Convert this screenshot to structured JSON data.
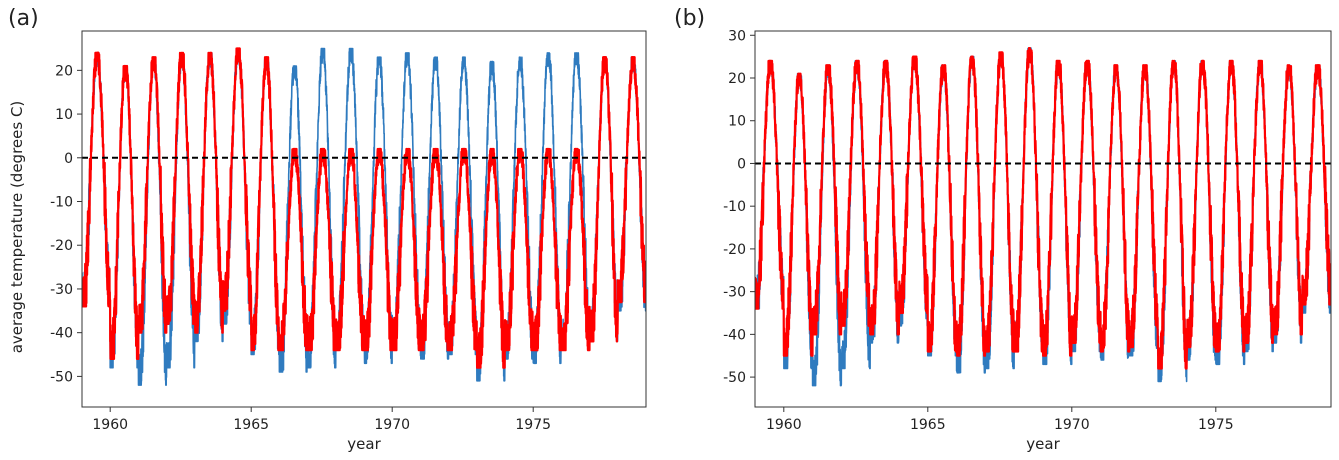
{
  "panels": [
    {
      "label": "(a)"
    },
    {
      "label": "(b)"
    }
  ],
  "colors": {
    "observed": "#2f7bbf",
    "modeled": "#ff0000",
    "zero_line": "#000000"
  },
  "chart_data": [
    {
      "panel": "(a)",
      "type": "line",
      "xlabel": "year",
      "ylabel": "average temperature (degrees C)",
      "xlim": [
        1959,
        1979
      ],
      "ylim": [
        -57,
        29
      ],
      "xticks": [
        1960,
        1965,
        1970,
        1975
      ],
      "yticks": [
        -50,
        -40,
        -30,
        -20,
        -10,
        0,
        10,
        20
      ],
      "reference_line": {
        "y": 0,
        "style": "dashed"
      },
      "series": [
        {
          "color": "#2f7bbf",
          "annual_peaks": [
            24,
            21,
            23,
            24,
            24,
            25,
            23,
            21,
            25,
            25,
            23,
            24,
            23,
            23,
            22,
            23,
            24,
            24,
            23,
            23
          ],
          "annual_troughs": [
            -34,
            -48,
            -52,
            -48,
            -42,
            -38,
            -45,
            -49,
            -48,
            -44,
            -47,
            -44,
            -46,
            -45,
            -51,
            -46,
            -47,
            -44,
            -42,
            -35
          ]
        },
        {
          "color": "#ff0000",
          "annual_peaks": [
            24,
            21,
            23,
            24,
            24,
            25,
            23,
            2,
            2,
            2,
            2,
            2,
            2,
            2,
            2,
            2,
            2,
            2,
            23,
            23
          ],
          "annual_troughs": [
            -34,
            -46,
            -40,
            -38,
            -40,
            -35,
            -44,
            -44,
            -44,
            -44,
            -44,
            -44,
            -44,
            -44,
            -48,
            -44,
            -44,
            -44,
            -42,
            -33
          ]
        }
      ]
    },
    {
      "panel": "(b)",
      "type": "line",
      "xlabel": "year",
      "ylabel": "",
      "xlim": [
        1959,
        1979
      ],
      "ylim": [
        -57,
        31
      ],
      "xticks": [
        1960,
        1965,
        1970,
        1975
      ],
      "yticks": [
        -50,
        -40,
        -30,
        -20,
        -10,
        0,
        10,
        20,
        30
      ],
      "reference_line": {
        "y": 0,
        "style": "dashed"
      },
      "series": [
        {
          "color": "#2f7bbf",
          "annual_peaks": [
            24,
            21,
            23,
            24,
            24,
            25,
            23,
            25,
            26,
            27,
            24,
            24,
            23,
            23,
            24,
            24,
            24,
            24,
            23,
            23
          ],
          "annual_troughs": [
            -34,
            -48,
            -52,
            -48,
            -42,
            -38,
            -45,
            -49,
            -48,
            -44,
            -47,
            -44,
            -46,
            -45,
            -51,
            -46,
            -47,
            -44,
            -42,
            -35
          ]
        },
        {
          "color": "#ff0000",
          "annual_peaks": [
            24,
            21,
            23,
            24,
            24,
            25,
            23,
            25,
            26,
            27,
            24,
            24,
            23,
            23,
            24,
            24,
            24,
            24,
            23,
            23
          ],
          "annual_troughs": [
            -34,
            -45,
            -40,
            -38,
            -40,
            -35,
            -44,
            -45,
            -44,
            -44,
            -45,
            -42,
            -44,
            -43,
            -48,
            -43,
            -44,
            -42,
            -40,
            -33
          ]
        }
      ]
    }
  ]
}
